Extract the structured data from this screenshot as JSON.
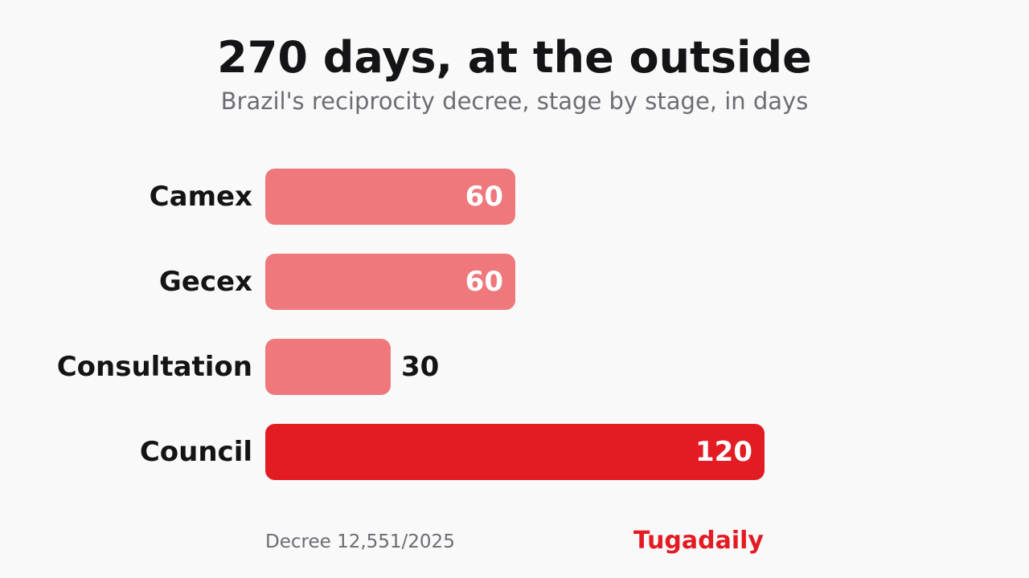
{
  "header": {
    "title": "270 days, at the outside",
    "subtitle": "Brazil's reciprocity decree, stage by stage, in days"
  },
  "footer": {
    "source": "Decree 12,551/2025",
    "brand": "Tugadaily"
  },
  "colors": {
    "bar_light": "#ee787b",
    "bar_highlight": "#e31b23",
    "brand": "#e31b23",
    "label": "#141417",
    "value_inside": "#ffffff"
  },
  "chart_data": {
    "type": "bar",
    "orientation": "horizontal",
    "title": "270 days, at the outside",
    "subtitle": "Brazil's reciprocity decree, stage by stage, in days",
    "categories": [
      "Camex",
      "Gecex",
      "Consultation",
      "Council"
    ],
    "values": [
      60,
      60,
      30,
      120
    ],
    "highlight": [
      false,
      false,
      false,
      true
    ],
    "xlim": [
      0,
      120
    ],
    "grid": false,
    "legend": "none",
    "data_labels": true
  }
}
